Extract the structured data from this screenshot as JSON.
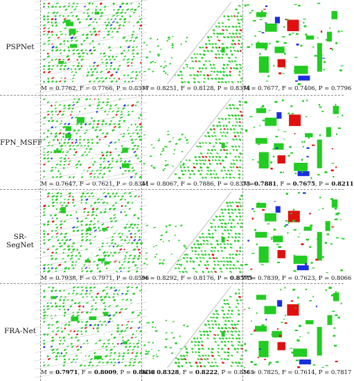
{
  "rows": [
    {
      "label": "PSPNet",
      "metrics": [
        [
          {
            "t": "M = 0.7762",
            "b": false
          },
          {
            "t": ", ",
            "b": false
          },
          {
            "t": "F = 0.7766",
            "b": false
          },
          {
            "t": ", ",
            "b": false
          },
          {
            "t": "P = 0.8377",
            "b": false
          }
        ],
        [
          {
            "t": "M = 0.8251",
            "b": false
          },
          {
            "t": ", ",
            "b": false
          },
          {
            "t": "F = 0.8128",
            "b": false
          },
          {
            "t": ", ",
            "b": false
          },
          {
            "t": "P = 0.8374",
            "b": false
          }
        ],
        [
          {
            "t": "M = 0.7677",
            "b": false
          },
          {
            "t": ", ",
            "b": false
          },
          {
            "t": "F = 0.7406",
            "b": false
          },
          {
            "t": ", ",
            "b": false
          },
          {
            "t": "P = 0.7796",
            "b": false
          }
        ]
      ]
    },
    {
      "label": "FPN_MSFF",
      "metrics": [
        [
          {
            "t": "M = 0.7647",
            "b": false
          },
          {
            "t": ", ",
            "b": false
          },
          {
            "t": "F = 0.7621",
            "b": false
          },
          {
            "t": ", ",
            "b": false
          },
          {
            "t": "P = 0.8341",
            "b": false
          }
        ],
        [
          {
            "t": "M = 0.8067",
            "b": false
          },
          {
            "t": ", ",
            "b": false
          },
          {
            "t": "F = 0.7886",
            "b": false
          },
          {
            "t": ", ",
            "b": false
          },
          {
            "t": "P = 0.8373",
            "b": false
          }
        ],
        [
          {
            "t": "M=",
            "b": false
          },
          {
            "t": "0.7881",
            "b": true
          },
          {
            "t": ", F = ",
            "b": false
          },
          {
            "t": "0.7675",
            "b": true
          },
          {
            "t": ", P = ",
            "b": false
          },
          {
            "t": "0.8211",
            "b": true
          }
        ]
      ]
    },
    {
      "label": "SR-SegNet",
      "metrics": [
        [
          {
            "t": "M = 0.7938",
            "b": false
          },
          {
            "t": ", ",
            "b": false
          },
          {
            "t": "F = 0.7971",
            "b": false
          },
          {
            "t": ", ",
            "b": false
          },
          {
            "t": "P = 0.8596",
            "b": false
          }
        ],
        [
          {
            "t": "M = 0.8292",
            "b": false
          },
          {
            "t": ", ",
            "b": false
          },
          {
            "t": "F = 0.8176",
            "b": false
          },
          {
            "t": ", P = ",
            "b": false
          },
          {
            "t": "0.8575",
            "b": true
          }
        ],
        [
          {
            "t": "M = 0.7839",
            "b": false
          },
          {
            "t": ", ",
            "b": false
          },
          {
            "t": "F = 0.7623",
            "b": false
          },
          {
            "t": ", ",
            "b": false
          },
          {
            "t": "P = 0.8066",
            "b": false
          }
        ]
      ]
    },
    {
      "label": "FRA-Net",
      "metrics": [
        [
          {
            "t": "M = ",
            "b": false
          },
          {
            "t": "0.7971",
            "b": true
          },
          {
            "t": ", F = ",
            "b": false
          },
          {
            "t": "0.8009",
            "b": true
          },
          {
            "t": ", P = ",
            "b": false
          },
          {
            "t": "0.8638",
            "b": true
          }
        ],
        [
          {
            "t": "M = ",
            "b": false
          },
          {
            "t": "0.8328",
            "b": true
          },
          {
            "t": ", F = ",
            "b": false
          },
          {
            "t": "0.8222",
            "b": true
          },
          {
            "t": ", P = 0.8565",
            "b": false
          }
        ],
        [
          {
            "t": "M = 0.7825",
            "b": false
          },
          {
            "t": ", ",
            "b": false
          },
          {
            "t": "F = 0.7614",
            "b": false
          },
          {
            "t": ", ",
            "b": false
          },
          {
            "t": "P = 0.7817",
            "b": false
          }
        ]
      ]
    }
  ],
  "colors": {
    "building_green": "#22cc22",
    "error_red": "#e01010",
    "error_blue": "#1a2ee0",
    "road_gray": "#c8c8c8",
    "background": "#ffffff",
    "divider": "#888888"
  }
}
